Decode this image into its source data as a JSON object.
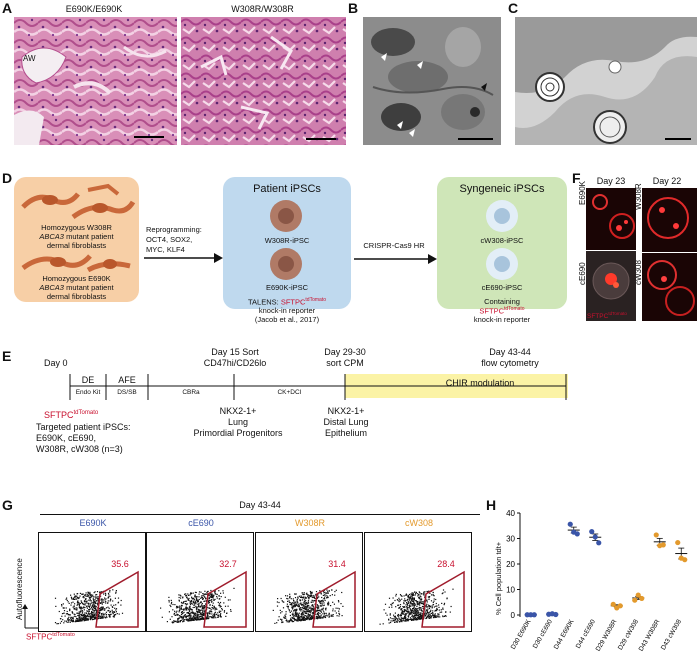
{
  "panels": {
    "A": {
      "label": "A",
      "titles": [
        "E690K/E690K",
        "W308R/W308R"
      ],
      "aw_label": "AW"
    },
    "B": {
      "label": "B"
    },
    "C": {
      "label": "C"
    },
    "D": {
      "label": "D",
      "box1_text_1a": "Homozygous W308R",
      "box1_text_1b_gene": "ABCA3",
      "box1_text_1b_rest": " mutant patient",
      "box1_text_1c": "dermal fibroblasts",
      "box1_text_2a": "Homozygous E690K",
      "box1_text_2b_gene": "ABCA3",
      "box1_text_2b_rest": " mutant patient",
      "box1_text_2c": "dermal fibroblasts",
      "arrow1_lines": [
        "Reprogramming:",
        "OCT4, SOX2,",
        "MYC, KLF4"
      ],
      "box2_title": "Patient iPSCs",
      "box2_cell1": "W308R-iPSC",
      "box2_cell2": "E690K-iPSC",
      "box2_talens_prefix": "TALENS: ",
      "box2_talens_reporter": "SFTPC",
      "box2_talens_sup": "tdTomato",
      "box2_line2": "knock-in reporter",
      "box2_line3": "(Jacob et al., 2017)",
      "arrow2_label": "CRISPR-Cas9 HR",
      "box3_title": "Syngeneic iPSCs",
      "box3_cell1": "cW308-iPSC",
      "box3_cell2": "cE690-iPSC",
      "box3_line1": "Containing",
      "box3_reporter": "SFTPC",
      "box3_sup": "tdTomato",
      "box3_line3": "knock-in reporter"
    },
    "F": {
      "label": "F",
      "day_left": "Day 23",
      "day_right": "Day 22",
      "rows_left": [
        "E690K",
        "cE690"
      ],
      "rows_right": [
        "W308R",
        "cW308"
      ],
      "overlay_text": "SFTPC",
      "overlay_sup": "tdTomato"
    },
    "E": {
      "label": "E",
      "day0": "Day 0",
      "day15": "Day 15 Sort",
      "day15_sub": "CD47hi/CD26lo",
      "day29": "Day 29-30",
      "day29_sub": "sort CPM",
      "day43": "Day 43-44",
      "day43_sub": "flow cytometry",
      "seg_de": "DE",
      "seg_afe": "AFE",
      "seg_chir": "CHIR modulation",
      "sub_endo": "Endo Kit",
      "sub_dssb": "DS/SB",
      "sub_cbra": "CBRa",
      "sub_ckdci": "CK+DCI",
      "reporter": "SFTPC",
      "reporter_sup": "tdTomato",
      "targeted": [
        "Targeted patient iPSCs:",
        "E690K, cE690,",
        "W308R, cW308 (n=3)"
      ],
      "nkx1": [
        "NKX2-1+",
        "Lung",
        "Primordial Progenitors"
      ],
      "nkx2": [
        "NKX2-1+",
        "Distal Lung",
        "Epithelium"
      ]
    },
    "G": {
      "label": "G",
      "title": "Day 43-44",
      "samples": [
        "E690K",
        "cE690",
        "W308R",
        "cW308"
      ],
      "percents": [
        "35.6",
        "32.7",
        "31.4",
        "28.4"
      ],
      "ylabel": "Autofluorescence",
      "xlabel": "SFTPC",
      "xlabel_sup": "tdTomato"
    },
    "H": {
      "label": "H",
      "ylabel": "% Cell population tdt+"
    }
  },
  "colors": {
    "blue": "#3a55a8",
    "orange": "#e39a2d",
    "red": "#c8102e",
    "gate": "#a01c2c",
    "peach": "#f7cfa6",
    "lightblue": "#bfd9ee",
    "lightgreen": "#cfe6b8",
    "yellow": "#fbf3a6"
  },
  "chart_data": {
    "type": "scatter",
    "title": "",
    "xlabel": "",
    "ylabel": "% Cell population tdt+",
    "ylim": [
      0,
      40
    ],
    "yticks": [
      0,
      10,
      20,
      30,
      40
    ],
    "categories": [
      "D30 E690K",
      "D30 cE690",
      "D44 E690K",
      "D44 cE690",
      "D29 W308R",
      "D29 cW308",
      "D43 W308R",
      "D43 cW308"
    ],
    "series": [
      {
        "color": "#3a55a8",
        "categories": [
          "D30 E690K",
          "D30 cE690",
          "D44 E690K",
          "D44 cE690"
        ],
        "points": [
          [
            0.1,
            0.1,
            0.1
          ],
          [
            0.3,
            0.5,
            0.2
          ],
          [
            35.6,
            32.5,
            31.8
          ],
          [
            32.7,
            30.6,
            28.3
          ]
        ],
        "means": [
          0.1,
          0.3,
          33.3,
          30.5
        ]
      },
      {
        "color": "#e39a2d",
        "categories": [
          "D29 W308R",
          "D29 cW308",
          "D43 W308R",
          "D43 cW308"
        ],
        "points": [
          [
            4.2,
            2.8,
            3.6
          ],
          [
            5.8,
            7.8,
            6.5
          ],
          [
            31.4,
            27.2,
            27.5
          ],
          [
            28.4,
            22.3,
            21.7
          ]
        ],
        "means": [
          3.6,
          6.7,
          28.7,
          24.1
        ]
      }
    ]
  }
}
